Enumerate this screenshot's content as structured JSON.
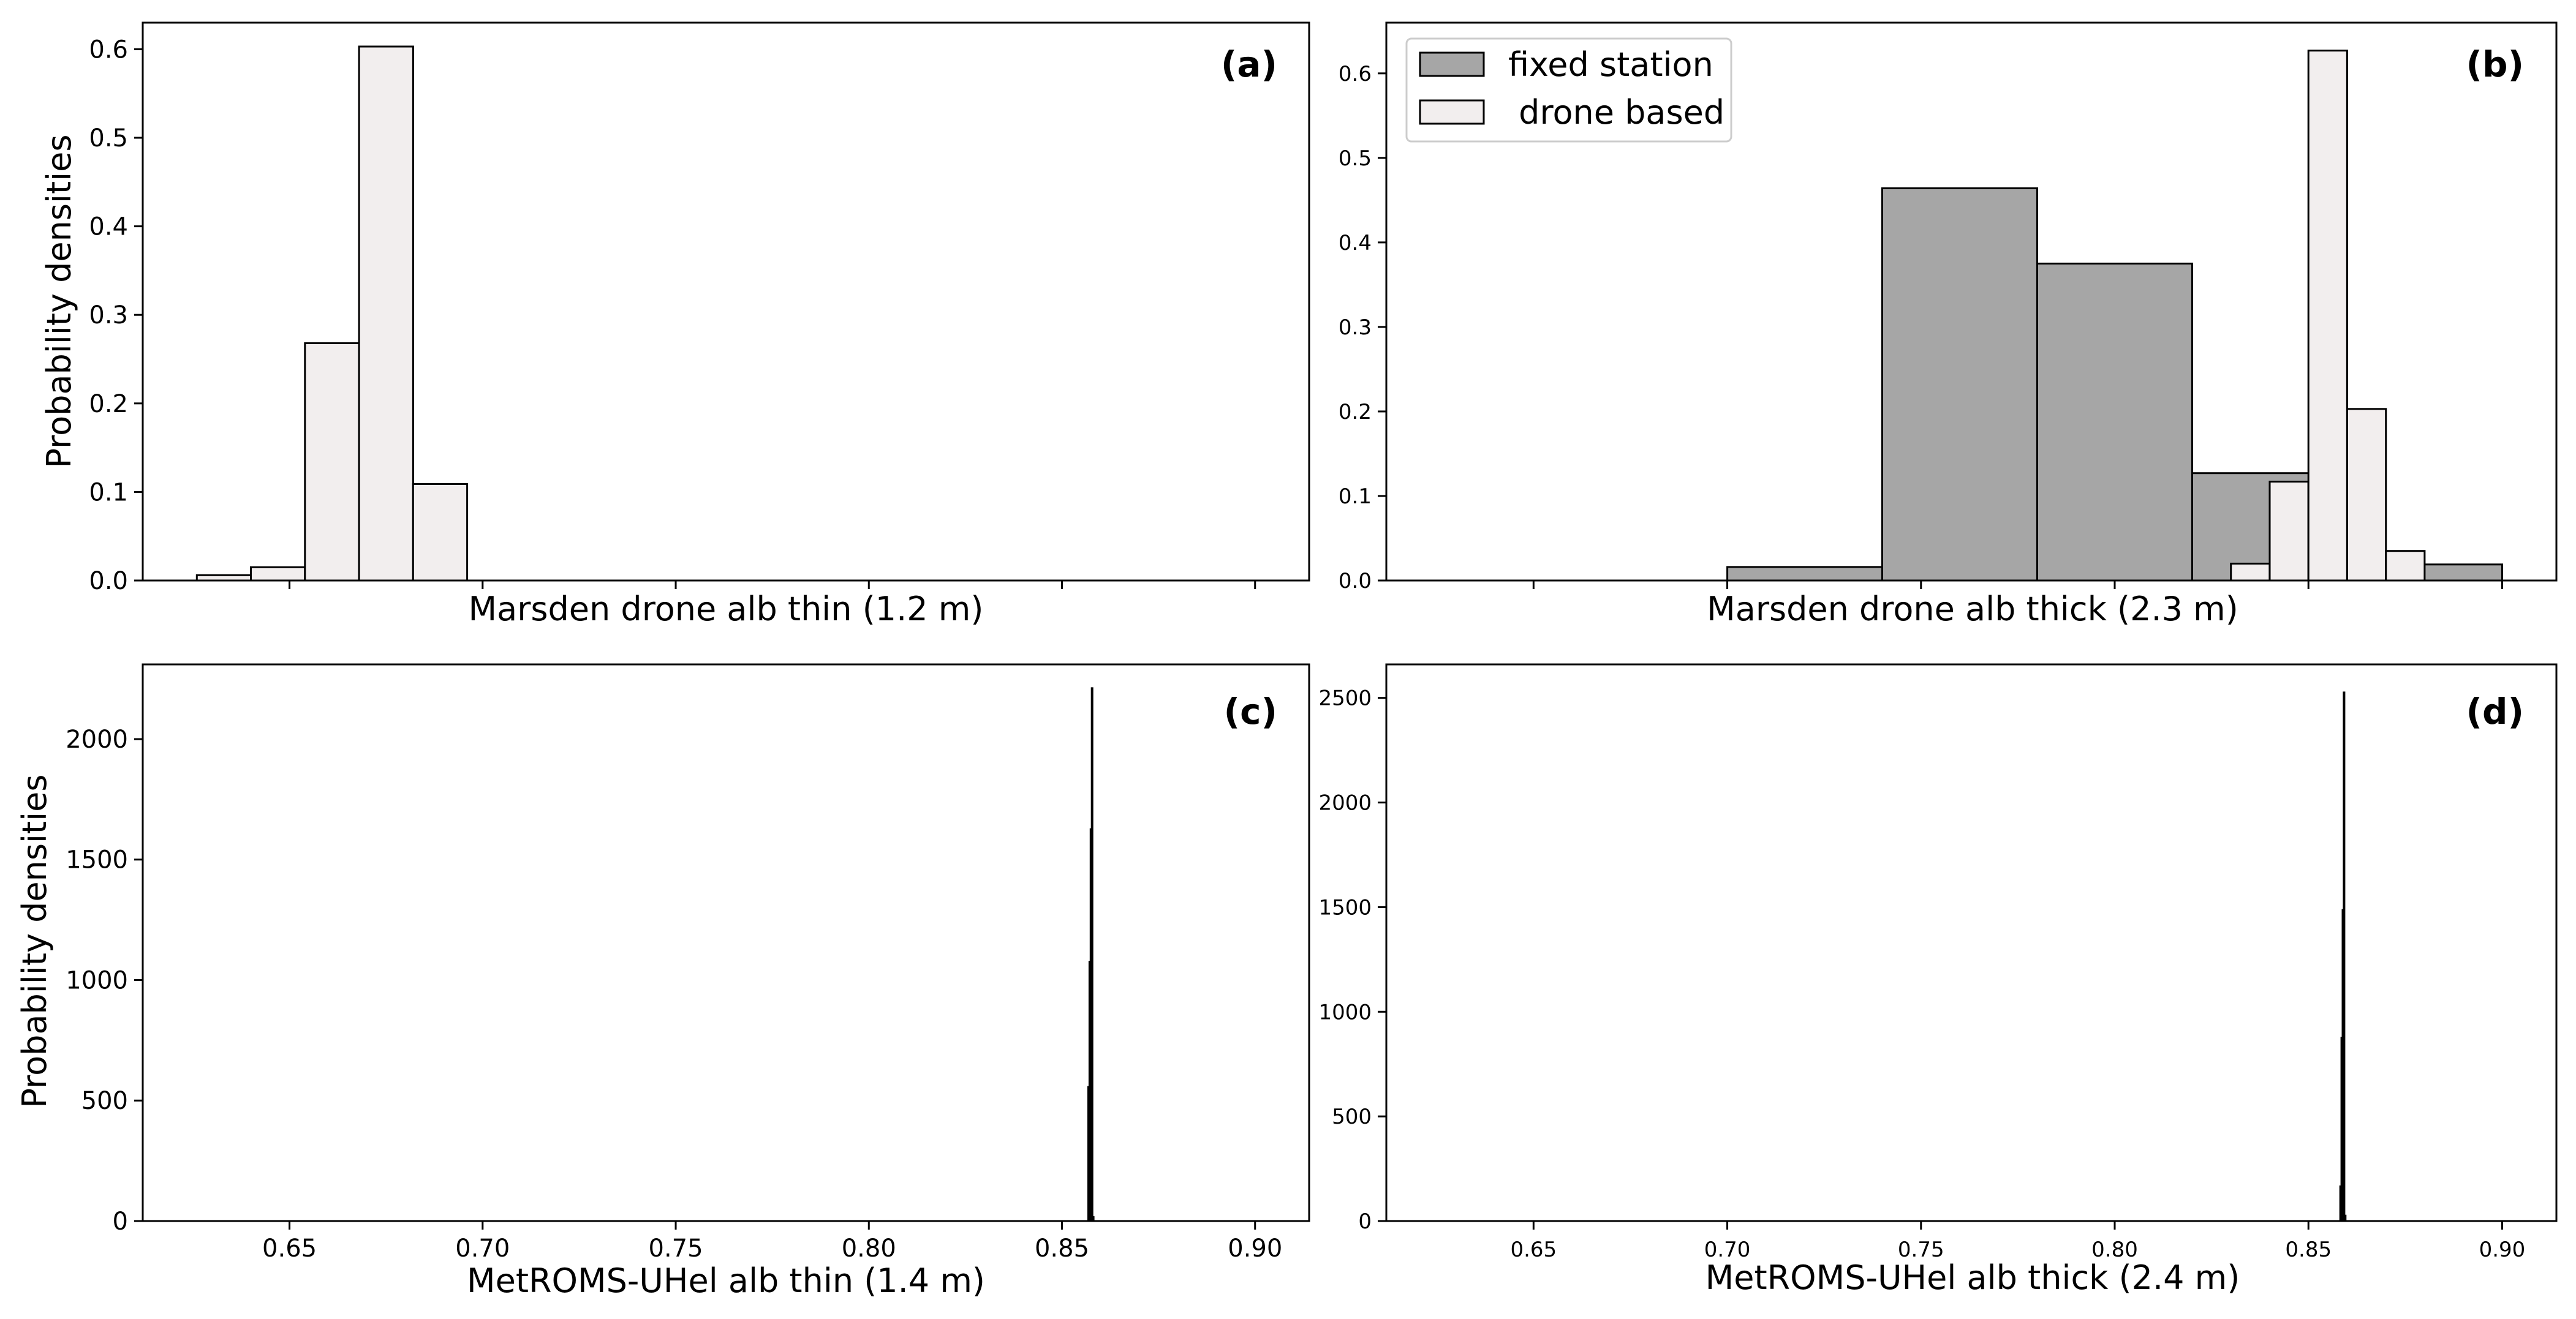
{
  "colors": {
    "fixed_station": "#a6a6a6",
    "drone_based": "#f2eeee",
    "edge": "#000000",
    "spike": "#000000"
  },
  "legend": {
    "fixed_station": "fixed station",
    "drone_based": " drone based"
  },
  "chart_data": [
    {
      "type": "bar",
      "panel_label": "(a)",
      "xlabel": "Marsden drone alb thin (1.2 m)",
      "ylabel": "Probability densities",
      "xlim": [
        0.612,
        0.914
      ],
      "ylim": [
        0,
        0.63
      ],
      "xticks": [
        0.65,
        0.7,
        0.75,
        0.8,
        0.85,
        0.9
      ],
      "xtick_labels": [],
      "yticks": [
        0.0,
        0.1,
        0.2,
        0.3,
        0.4,
        0.5,
        0.6
      ],
      "ytick_labels": [
        "0.0",
        "0.1",
        "0.2",
        "0.3",
        "0.4",
        "0.5",
        "0.6"
      ],
      "series": [
        {
          "legend": "drone_based",
          "bins": [
            [
              0.626,
              0.64,
              0.006
            ],
            [
              0.64,
              0.654,
              0.015
            ],
            [
              0.654,
              0.668,
              0.268
            ],
            [
              0.668,
              0.682,
              0.603
            ],
            [
              0.682,
              0.696,
              0.109
            ]
          ]
        }
      ]
    },
    {
      "type": "bar",
      "panel_label": "(b)",
      "xlabel": "Marsden drone alb thick (2.3 m)",
      "ylabel": "",
      "xlim": [
        0.612,
        0.914
      ],
      "ylim": [
        0,
        0.66
      ],
      "xticks": [
        0.65,
        0.7,
        0.75,
        0.8,
        0.85,
        0.9
      ],
      "xtick_labels": [],
      "yticks": [
        0.0,
        0.1,
        0.2,
        0.3,
        0.4,
        0.5,
        0.6
      ],
      "ytick_labels": [
        "0.0",
        "0.1",
        "0.2",
        "0.3",
        "0.4",
        "0.5",
        "0.6"
      ],
      "legend_position": "upper-left",
      "series": [
        {
          "legend": "fixed_station",
          "bins": [
            [
              0.7,
              0.74,
              0.016
            ],
            [
              0.74,
              0.78,
              0.464
            ],
            [
              0.78,
              0.82,
              0.375
            ],
            [
              0.82,
              0.86,
              0.127
            ],
            [
              0.86,
              0.9,
              0.019
            ]
          ]
        },
        {
          "legend": "drone_based",
          "bins": [
            [
              0.83,
              0.84,
              0.02
            ],
            [
              0.84,
              0.85,
              0.117
            ],
            [
              0.85,
              0.86,
              0.627
            ],
            [
              0.86,
              0.87,
              0.203
            ],
            [
              0.87,
              0.88,
              0.035
            ]
          ]
        }
      ]
    },
    {
      "type": "bar",
      "panel_label": "(c)",
      "xlabel": "MetROMS-UHel alb thin (1.4 m)",
      "ylabel": "Probability densities",
      "xlim": [
        0.612,
        0.914
      ],
      "ylim": [
        0,
        2310
      ],
      "xticks": [
        0.65,
        0.7,
        0.75,
        0.8,
        0.85,
        0.9
      ],
      "xtick_labels": [
        "0.65",
        "0.70",
        "0.75",
        "0.80",
        "0.85",
        "0.90"
      ],
      "yticks": [
        0,
        500,
        1000,
        1500,
        2000
      ],
      "ytick_labels": [
        "0",
        "500",
        "1000",
        "1500",
        "2000"
      ],
      "series": [
        {
          "legend": "",
          "spikes": [
            [
              0.8569,
              560
            ],
            [
              0.8572,
              1080
            ],
            [
              0.8575,
              1630
            ],
            [
              0.8578,
              2215
            ],
            [
              0.8581,
              20
            ]
          ]
        }
      ]
    },
    {
      "type": "bar",
      "panel_label": "(d)",
      "xlabel": "MetROMS-UHel alb thick (2.4 m)",
      "ylabel": "",
      "xlim": [
        0.612,
        0.914
      ],
      "ylim": [
        0,
        2660
      ],
      "xticks": [
        0.65,
        0.7,
        0.75,
        0.8,
        0.85,
        0.9
      ],
      "xtick_labels": [
        "0.65",
        "0.70",
        "0.75",
        "0.80",
        "0.85",
        "0.90"
      ],
      "yticks": [
        0,
        500,
        1000,
        1500,
        2000,
        2500
      ],
      "ytick_labels": [
        "0",
        "500",
        "1000",
        "1500",
        "2000",
        "2500"
      ],
      "series": [
        {
          "legend": "",
          "spikes": [
            [
              0.8583,
              170
            ],
            [
              0.8586,
              880
            ],
            [
              0.8589,
              1490
            ],
            [
              0.8592,
              2530
            ],
            [
              0.8595,
              30
            ]
          ]
        }
      ]
    }
  ]
}
